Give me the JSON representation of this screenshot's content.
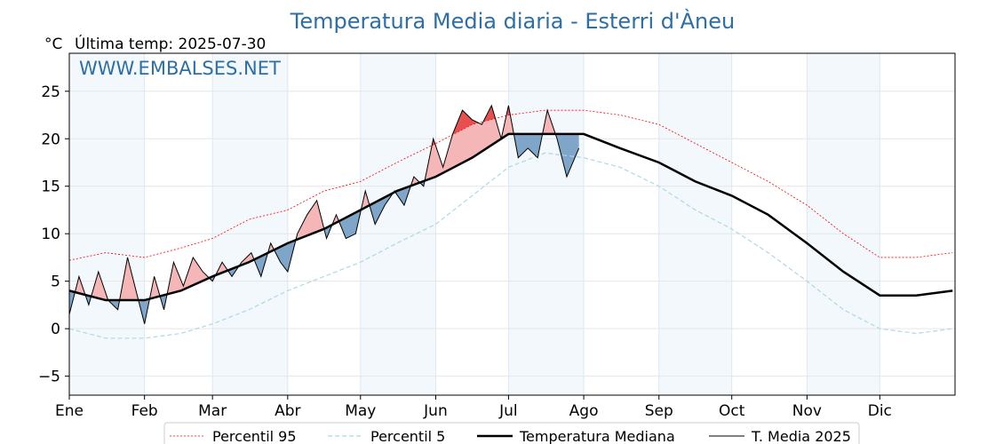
{
  "chart_data": {
    "type": "line",
    "title": "Temperatura Media diaria - Esterri d'Àneu",
    "subtitle": "Última temp: 2025-07-30",
    "unit": "°C",
    "watermark": "WWW.EMBALSES.NET",
    "months": [
      "Ene",
      "Feb",
      "Mar",
      "Abr",
      "May",
      "Jun",
      "Jul",
      "Ago",
      "Sep",
      "Oct",
      "Nov",
      "Dic"
    ],
    "month_start_days": [
      0,
      31,
      59,
      90,
      120,
      151,
      181,
      212,
      243,
      273,
      304,
      334
    ],
    "days_in_year": 365,
    "ylim": [
      -7,
      29
    ],
    "yticks": [
      -5,
      0,
      5,
      10,
      15,
      20,
      25
    ],
    "grid": true,
    "legend_position": "bottom-center",
    "series": [
      {
        "name": "Percentil 95",
        "color": "#ff0000",
        "style": "dotted",
        "x": [
          0,
          15,
          31,
          46,
          59,
          74,
          90,
          105,
          120,
          135,
          151,
          166,
          181,
          196,
          212,
          227,
          243,
          258,
          273,
          288,
          304,
          319,
          334,
          349,
          364
        ],
        "values": [
          7.2,
          8.0,
          7.5,
          8.5,
          9.5,
          11.5,
          12.5,
          14.5,
          15.5,
          17.5,
          19.5,
          21.5,
          22.5,
          23.0,
          23.0,
          22.5,
          21.5,
          19.5,
          17.5,
          15.5,
          13.0,
          10.0,
          7.5,
          7.5,
          8.0
        ]
      },
      {
        "name": "Percentil 5",
        "color": "#add8e6",
        "style": "dashed",
        "x": [
          0,
          15,
          31,
          46,
          59,
          74,
          90,
          105,
          120,
          135,
          151,
          166,
          181,
          196,
          212,
          227,
          243,
          258,
          273,
          288,
          304,
          319,
          334,
          349,
          364
        ],
        "values": [
          0.0,
          -1.0,
          -1.0,
          -0.5,
          0.5,
          2.0,
          4.0,
          5.5,
          7.0,
          9.0,
          11.0,
          14.0,
          17.0,
          18.5,
          18.0,
          17.0,
          15.0,
          12.5,
          10.5,
          8.0,
          5.0,
          2.0,
          0.0,
          -0.5,
          0.0
        ]
      },
      {
        "name": "Temperatura Mediana",
        "color": "#000000",
        "style": "solid-thick",
        "x": [
          0,
          15,
          31,
          46,
          59,
          74,
          90,
          105,
          120,
          135,
          151,
          166,
          181,
          196,
          212,
          227,
          243,
          258,
          273,
          288,
          304,
          319,
          334,
          349,
          364
        ],
        "values": [
          4.0,
          3.0,
          3.0,
          4.0,
          5.5,
          7.0,
          9.0,
          10.5,
          12.5,
          14.5,
          16.0,
          18.0,
          20.5,
          20.5,
          20.5,
          19.0,
          17.5,
          15.5,
          14.0,
          12.0,
          9.0,
          6.0,
          3.5,
          3.5,
          4.0
        ]
      },
      {
        "name": "T. Media 2025",
        "color": "#000000",
        "style": "solid-thin",
        "x": [
          0,
          4,
          8,
          12,
          16,
          20,
          24,
          28,
          31,
          35,
          39,
          43,
          47,
          51,
          55,
          59,
          63,
          67,
          71,
          75,
          79,
          83,
          87,
          90,
          94,
          98,
          102,
          106,
          110,
          114,
          118,
          122,
          126,
          130,
          134,
          138,
          142,
          146,
          150,
          154,
          158,
          162,
          166,
          170,
          174,
          178,
          181,
          185,
          189,
          193,
          197,
          201,
          205,
          210
        ],
        "values": [
          1.5,
          5.5,
          2.5,
          6.0,
          3.0,
          2.0,
          7.5,
          3.5,
          0.5,
          5.5,
          2.0,
          7.0,
          4.5,
          7.5,
          6.0,
          5.0,
          7.0,
          5.5,
          7.0,
          8.0,
          5.5,
          9.0,
          7.0,
          6.0,
          10.0,
          12.0,
          13.5,
          9.5,
          12.0,
          9.5,
          10.0,
          14.5,
          11.0,
          13.0,
          14.5,
          13.0,
          16.0,
          15.0,
          20.0,
          17.0,
          20.5,
          23.0,
          22.0,
          21.5,
          23.5,
          20.0,
          23.5,
          18.0,
          19.0,
          18.0,
          23.0,
          20.0,
          16.0,
          19.0
        ]
      }
    ]
  }
}
